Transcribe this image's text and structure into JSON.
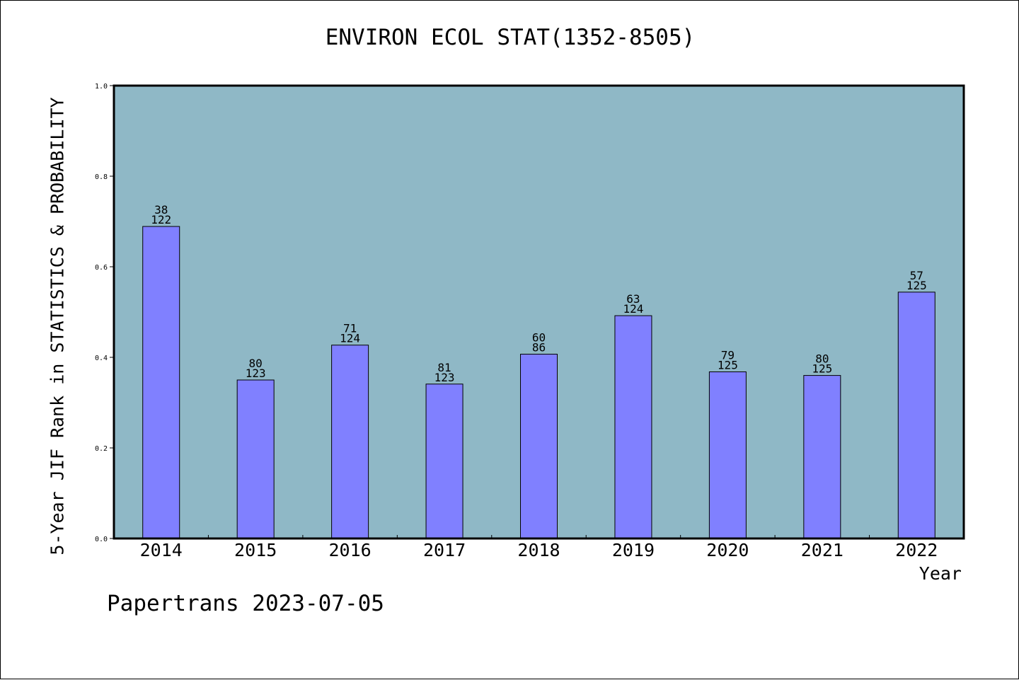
{
  "title": "ENVIRON ECOL STAT(1352-8505)",
  "footer": "Papertrans 2023-07-05",
  "colors": {
    "plot_background": "#8fb8c6",
    "bar_fill": "#8080ff",
    "bar_stroke": "#000000"
  },
  "chart_data": {
    "type": "bar",
    "title": "ENVIRON ECOL STAT(1352-8505)",
    "xlabel": "Year",
    "ylabel": "5-Year JIF Rank in STATISTICS & PROBABILITY",
    "categories": [
      "2014",
      "2015",
      "2016",
      "2017",
      "2018",
      "2019",
      "2020",
      "2021",
      "2022"
    ],
    "values": [
      0.689,
      0.35,
      0.427,
      0.341,
      0.407,
      0.492,
      0.368,
      0.36,
      0.544
    ],
    "rank": [
      "38",
      "80",
      "71",
      "81",
      "60",
      "63",
      "79",
      "80",
      "57"
    ],
    "total": [
      "122",
      "123",
      "124",
      "123",
      "86",
      "124",
      "125",
      "125",
      "125"
    ],
    "ylim": [
      0,
      1.0
    ],
    "yticks": [
      "0.0",
      "0.2",
      "0.4",
      "0.6",
      "0.8",
      "1.0"
    ],
    "grid": false,
    "legend": "none"
  }
}
